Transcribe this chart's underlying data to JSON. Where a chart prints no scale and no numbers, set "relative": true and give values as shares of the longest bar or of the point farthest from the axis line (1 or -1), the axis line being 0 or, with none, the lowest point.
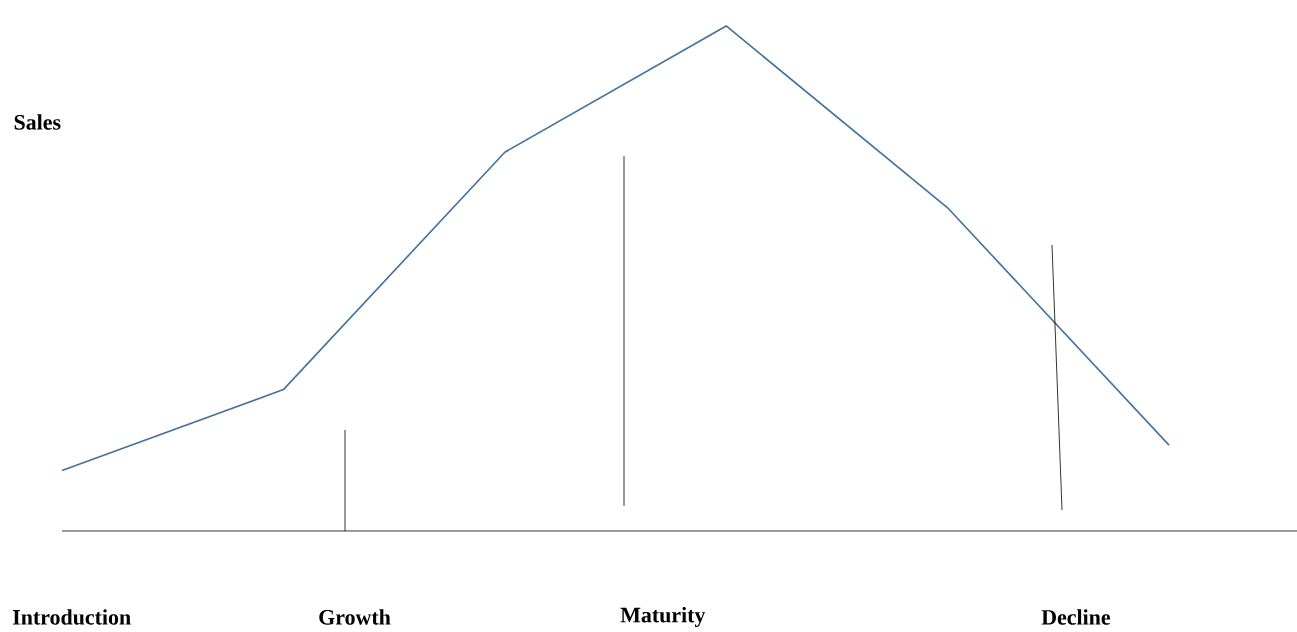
{
  "chart_data": {
    "type": "line",
    "relative": true,
    "ylabel": "Sales",
    "categories": [
      null,
      null,
      null,
      null,
      null,
      null
    ],
    "series": [
      {
        "color": "#41719c",
        "values": [
          0.12,
          0.28,
          0.75,
          1,
          0.64,
          0.17
        ]
      }
    ],
    "annotations": [
      "Introduction",
      "Growth",
      "Maturity",
      "Decline"
    ]
  }
}
